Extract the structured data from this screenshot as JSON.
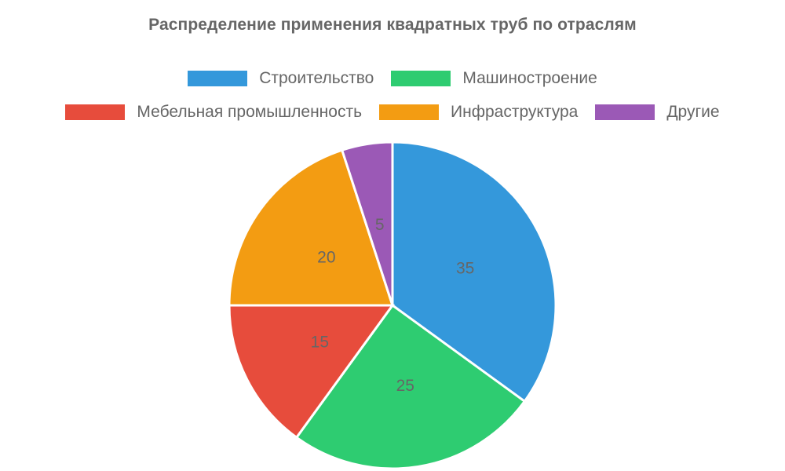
{
  "chart_data": {
    "type": "pie",
    "title": "Распределение применения квадратных труб по отраслям",
    "categories": [
      "Строительство",
      "Машиностроение",
      "Мебельная промышленность",
      "Инфраструктура",
      "Другие"
    ],
    "values": [
      35,
      25,
      15,
      20,
      5
    ],
    "colors": [
      "#3498db",
      "#2ecc71",
      "#e74c3c",
      "#f39c12",
      "#9b59b6"
    ],
    "legend_position": "top",
    "data_labels": true
  }
}
